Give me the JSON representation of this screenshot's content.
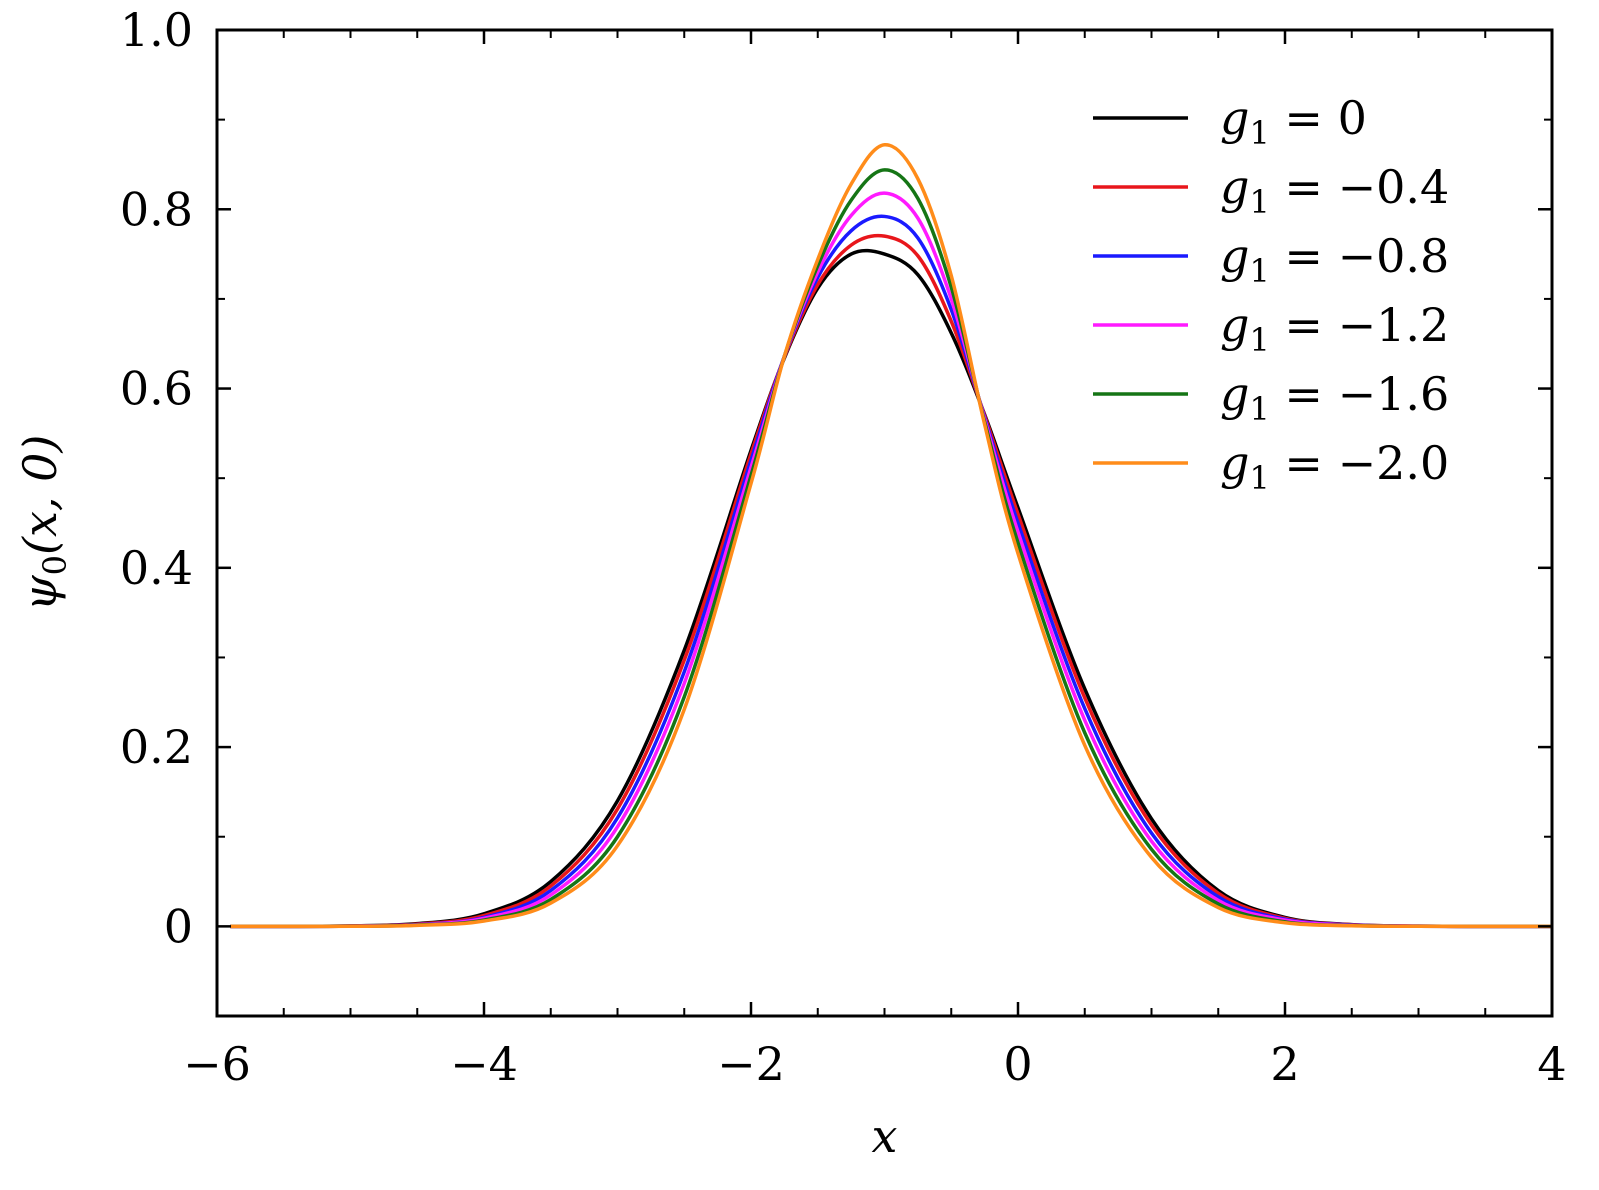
{
  "chart_data": {
    "type": "line",
    "title": "",
    "xlabel": "x",
    "ylabel": "ψ0(x, 0)",
    "xlim": [
      -6,
      4
    ],
    "ylim": [
      -0.1,
      1.0
    ],
    "xticks": [
      -6,
      -4,
      -2,
      0,
      2,
      4
    ],
    "xtick_labels": [
      "−6",
      "−4",
      "−2",
      "0",
      "2",
      "4"
    ],
    "yticks": [
      0,
      0.2,
      0.4,
      0.6,
      0.8,
      1.0
    ],
    "ytick_labels": [
      "0",
      "0.2",
      "0.4",
      "0.6",
      "0.8",
      "1.0"
    ],
    "grid": false,
    "legend_position": "top-right",
    "x": [
      -5.9,
      -5.5,
      -5.0,
      -4.5,
      -4.0,
      -3.5,
      -3.0,
      -2.5,
      -2.0,
      -1.75,
      -1.5,
      -1.25,
      -1.0,
      -0.75,
      -0.5,
      -0.25,
      0.0,
      0.5,
      1.0,
      1.5,
      2.0,
      2.5,
      3.0,
      3.5,
      4.0
    ],
    "series": [
      {
        "name": "g1 = 0",
        "color": "#000000",
        "values": [
          0.0,
          0.0,
          0.0005,
          0.003,
          0.014,
          0.05,
          0.14,
          0.308,
          0.531,
          0.634,
          0.712,
          0.75,
          0.75,
          0.727,
          0.662,
          0.571,
          0.467,
          0.265,
          0.12,
          0.04,
          0.01,
          0.002,
          0.0003,
          0.0,
          0.0
        ]
      },
      {
        "name": "g1 = −0.4",
        "color": "#e8161b",
        "values": [
          0.0,
          0.0,
          0.0004,
          0.0025,
          0.012,
          0.045,
          0.131,
          0.297,
          0.527,
          0.635,
          0.716,
          0.76,
          0.77,
          0.748,
          0.675,
          0.57,
          0.46,
          0.255,
          0.113,
          0.037,
          0.009,
          0.0018,
          0.0002,
          0.0,
          0.0
        ]
      },
      {
        "name": "g1 = −0.8",
        "color": "#1a1aff",
        "values": [
          0.0,
          0.0,
          0.0003,
          0.002,
          0.01,
          0.04,
          0.121,
          0.284,
          0.52,
          0.636,
          0.724,
          0.776,
          0.792,
          0.768,
          0.688,
          0.568,
          0.45,
          0.243,
          0.104,
          0.033,
          0.008,
          0.0015,
          0.0002,
          0.0,
          0.0
        ]
      },
      {
        "name": "g1 = −1.2",
        "color": "#ff1aff",
        "values": [
          0.0,
          0.0,
          0.0002,
          0.0017,
          0.009,
          0.035,
          0.111,
          0.271,
          0.512,
          0.636,
          0.73,
          0.793,
          0.818,
          0.79,
          0.7,
          0.566,
          0.44,
          0.23,
          0.095,
          0.029,
          0.007,
          0.0012,
          0.0001,
          0.0,
          0.0
        ]
      },
      {
        "name": "g1 = −1.6",
        "color": "#157515",
        "values": [
          0.0,
          0.0,
          0.0002,
          0.0014,
          0.007,
          0.03,
          0.1,
          0.256,
          0.503,
          0.636,
          0.737,
          0.81,
          0.844,
          0.812,
          0.713,
          0.563,
          0.428,
          0.216,
          0.086,
          0.025,
          0.005,
          0.0009,
          0.0001,
          0.0,
          0.0
        ]
      },
      {
        "name": "g1 = −2.0",
        "color": "#ff8c1a",
        "values": [
          0.0,
          0.0,
          0.0001,
          0.0011,
          0.006,
          0.026,
          0.09,
          0.242,
          0.494,
          0.636,
          0.744,
          0.828,
          0.872,
          0.834,
          0.726,
          0.56,
          0.416,
          0.202,
          0.077,
          0.021,
          0.004,
          0.0007,
          0.0001,
          0.0,
          0.0
        ]
      }
    ]
  },
  "legend": {
    "items": [
      {
        "prefix": "g",
        "sub": "1",
        "rest": " = 0"
      },
      {
        "prefix": "g",
        "sub": "1",
        "rest": " = −0.4"
      },
      {
        "prefix": "g",
        "sub": "1",
        "rest": " = −0.8"
      },
      {
        "prefix": "g",
        "sub": "1",
        "rest": " = −1.2"
      },
      {
        "prefix": "g",
        "sub": "1",
        "rest": " = −1.6"
      },
      {
        "prefix": "g",
        "sub": "1",
        "rest": " = −2.0"
      }
    ]
  },
  "labels": {
    "xlabel": "x",
    "ylabel_sym": "ψ",
    "ylabel_sub": "0",
    "ylabel_rest": "(x, 0)"
  }
}
